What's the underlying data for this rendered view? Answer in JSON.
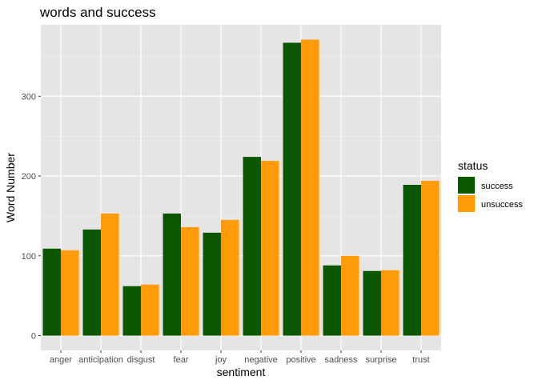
{
  "chart_data": {
    "type": "bar",
    "title": "words and success",
    "xlabel": "sentiment",
    "ylabel": "Word Number",
    "categories": [
      "anger",
      "anticipation",
      "disgust",
      "fear",
      "joy",
      "negative",
      "positive",
      "sadness",
      "surprise",
      "trust"
    ],
    "series": [
      {
        "name": "success",
        "color": "#0b5600",
        "values": [
          109,
          133,
          62,
          153,
          129,
          224,
          367,
          88,
          81,
          189
        ]
      },
      {
        "name": "unsuccess",
        "color": "#ff9a08",
        "values": [
          107,
          153,
          64,
          136,
          145,
          219,
          371,
          100,
          82,
          194
        ]
      }
    ],
    "ylim": [
      -18.5,
      389.5
    ],
    "yticks": [
      0,
      100,
      200,
      300
    ],
    "grid": true,
    "legend_title": "status",
    "legend_position": "right",
    "colors": {
      "panel_background": "#e5e5e5",
      "grid_major": "#ffffff",
      "grid_minor": "#f2f2f2"
    }
  }
}
